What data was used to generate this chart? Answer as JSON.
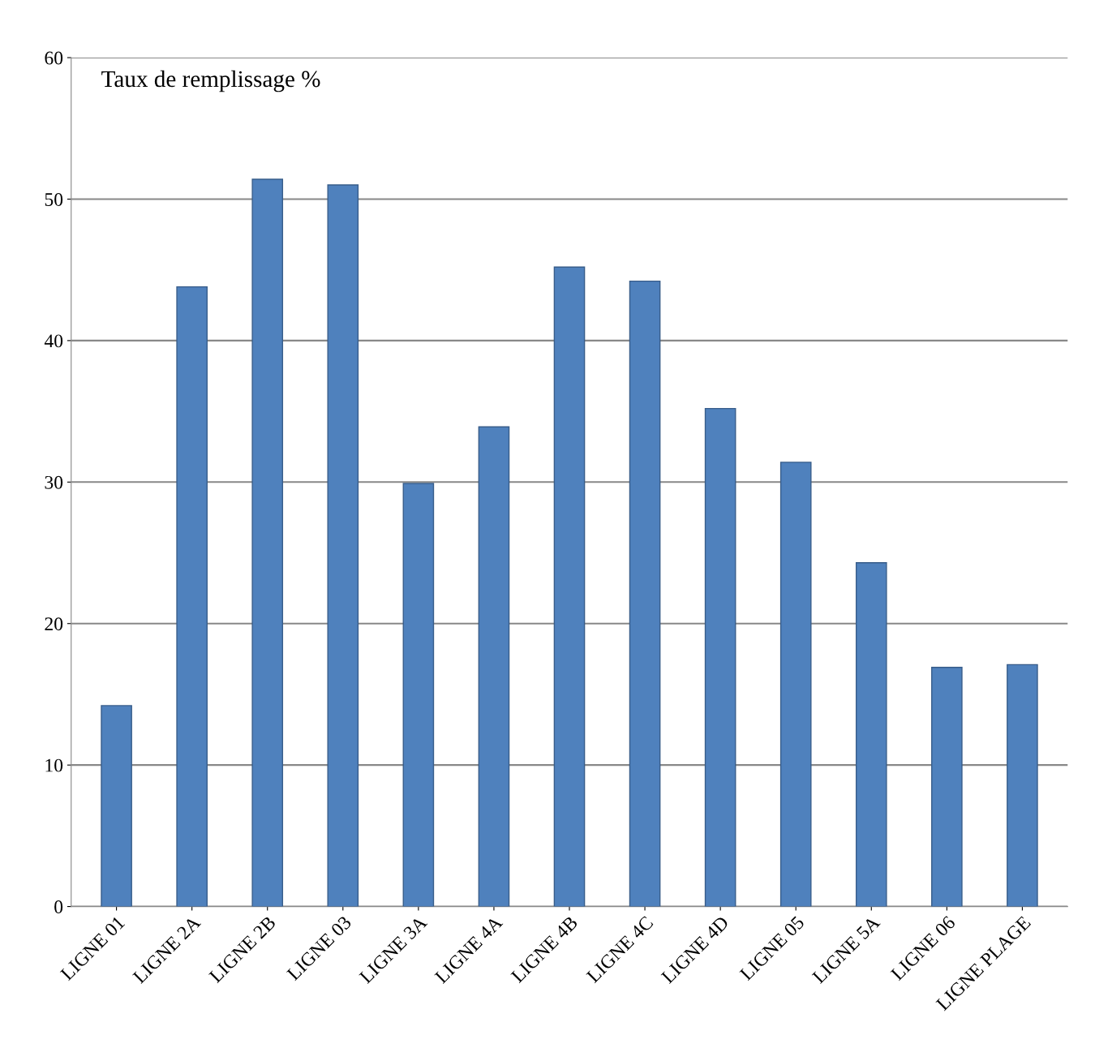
{
  "chart_data": {
    "type": "bar",
    "title": "Taux de remplissage %",
    "categories": [
      "LIGNE 01",
      "LIGNE 2A",
      "LIGNE 2B",
      "LIGNE 03",
      "LIGNE 3A",
      "LIGNE 4A",
      "LIGNE 4B",
      "LIGNE 4C",
      "LIGNE 4D",
      "LIGNE 05",
      "LIGNE 5A",
      "LIGNE 06",
      "LIGNE PLAGE"
    ],
    "values": [
      14.2,
      43.8,
      51.4,
      51.0,
      29.9,
      33.9,
      45.2,
      44.2,
      35.2,
      31.4,
      24.3,
      16.9,
      17.1
    ],
    "color": "#4f81bd",
    "ylim": [
      0,
      60
    ],
    "yticks": [
      0,
      10,
      20,
      30,
      40,
      50,
      60
    ],
    "grid": "y"
  }
}
